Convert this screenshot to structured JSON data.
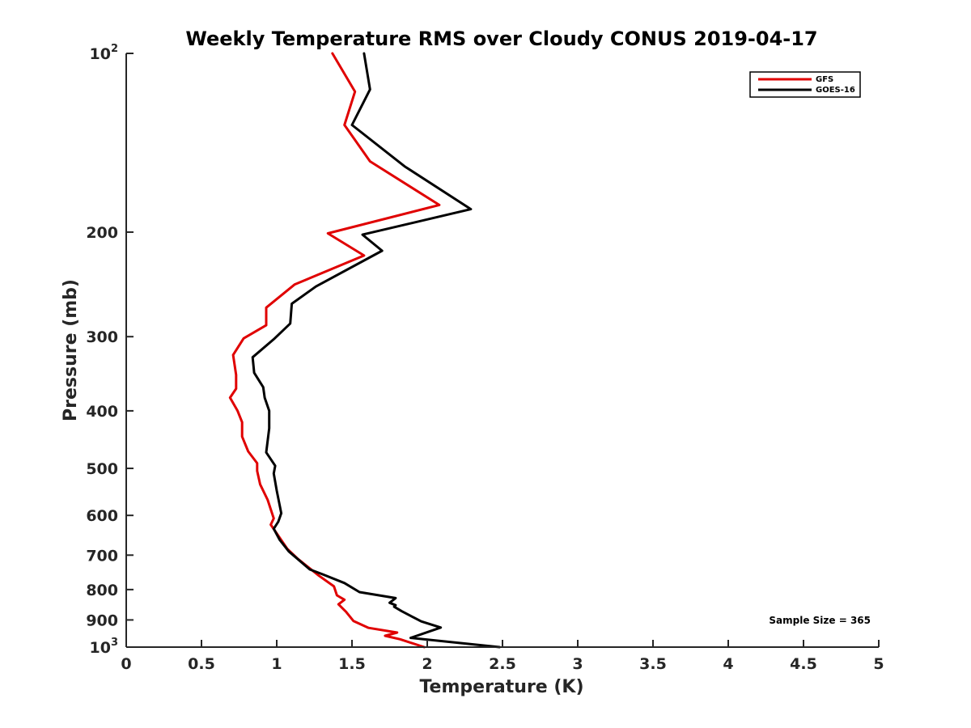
{
  "chart_data": {
    "type": "line",
    "title": "Weekly Temperature RMS over Cloudy CONUS 2019-04-17",
    "xlabel": "Temperature (K)",
    "ylabel": "Pressure (mb)",
    "xlim": [
      0,
      5
    ],
    "ylim": [
      100,
      1000
    ],
    "y_scale": "log",
    "y_reversed": true,
    "x_ticks": [
      "0",
      "0.5",
      "1",
      "1.5",
      "2",
      "2.5",
      "3",
      "3.5",
      "4",
      "4.5",
      "5"
    ],
    "x_tick_values": [
      0,
      0.5,
      1,
      1.5,
      2,
      2.5,
      3,
      3.5,
      4,
      4.5,
      5
    ],
    "y_ticks": [
      {
        "value": 100,
        "label": "10",
        "sup": "2"
      },
      {
        "value": 200,
        "label": "200",
        "sup": ""
      },
      {
        "value": 300,
        "label": "300",
        "sup": ""
      },
      {
        "value": 400,
        "label": "400",
        "sup": ""
      },
      {
        "value": 500,
        "label": "500",
        "sup": ""
      },
      {
        "value": 600,
        "label": "600",
        "sup": ""
      },
      {
        "value": 700,
        "label": "700",
        "sup": ""
      },
      {
        "value": 800,
        "label": "800",
        "sup": ""
      },
      {
        "value": 900,
        "label": "900",
        "sup": ""
      },
      {
        "value": 1000,
        "label": "10",
        "sup": "3"
      }
    ],
    "grid": false,
    "legend_position": "top-right",
    "annotation": "Sample Size = 365",
    "series": [
      {
        "name": "GFS",
        "color": "#e00000",
        "points": [
          [
            1.37,
            100
          ],
          [
            1.52,
            116
          ],
          [
            1.45,
            132
          ],
          [
            1.62,
            152
          ],
          [
            2.08,
            180
          ],
          [
            1.34,
            201
          ],
          [
            1.58,
            219
          ],
          [
            1.12,
            245
          ],
          [
            0.93,
            268
          ],
          [
            0.93,
            287
          ],
          [
            0.78,
            302
          ],
          [
            0.71,
            322
          ],
          [
            0.73,
            348
          ],
          [
            0.73,
            367
          ],
          [
            0.69,
            380
          ],
          [
            0.74,
            400
          ],
          [
            0.77,
            418
          ],
          [
            0.77,
            442
          ],
          [
            0.81,
            468
          ],
          [
            0.87,
            490
          ],
          [
            0.87,
            505
          ],
          [
            0.89,
            532
          ],
          [
            0.94,
            565
          ],
          [
            0.98,
            607
          ],
          [
            0.96,
            622
          ],
          [
            1.01,
            649
          ],
          [
            1.07,
            683
          ],
          [
            1.14,
            710
          ],
          [
            1.28,
            758
          ],
          [
            1.38,
            790
          ],
          [
            1.4,
            818
          ],
          [
            1.45,
            832
          ],
          [
            1.41,
            847
          ],
          [
            1.46,
            872
          ],
          [
            1.51,
            904
          ],
          [
            1.61,
            928
          ],
          [
            1.8,
            945
          ],
          [
            1.72,
            957
          ],
          [
            1.82,
            970
          ],
          [
            1.98,
            1000
          ]
        ]
      },
      {
        "name": "GOES-16",
        "color": "#000000",
        "points": [
          [
            1.58,
            100
          ],
          [
            1.62,
            115
          ],
          [
            1.5,
            132
          ],
          [
            1.85,
            155
          ],
          [
            2.29,
            183
          ],
          [
            1.57,
            202
          ],
          [
            1.7,
            215
          ],
          [
            1.26,
            247
          ],
          [
            1.1,
            264
          ],
          [
            1.09,
            285
          ],
          [
            0.98,
            303
          ],
          [
            0.84,
            325
          ],
          [
            0.85,
            345
          ],
          [
            0.91,
            365
          ],
          [
            0.92,
            380
          ],
          [
            0.95,
            400
          ],
          [
            0.95,
            428
          ],
          [
            0.93,
            470
          ],
          [
            0.99,
            495
          ],
          [
            0.98,
            510
          ],
          [
            1.0,
            545
          ],
          [
            1.03,
            595
          ],
          [
            1.01,
            615
          ],
          [
            0.98,
            632
          ],
          [
            1.02,
            660
          ],
          [
            1.08,
            690
          ],
          [
            1.22,
            740
          ],
          [
            1.3,
            753
          ],
          [
            1.45,
            780
          ],
          [
            1.55,
            808
          ],
          [
            1.79,
            827
          ],
          [
            1.75,
            842
          ],
          [
            1.79,
            850
          ],
          [
            1.78,
            855
          ],
          [
            1.83,
            870
          ],
          [
            1.96,
            905
          ],
          [
            2.09,
            927
          ],
          [
            1.89,
            965
          ],
          [
            2.48,
            1000
          ]
        ]
      }
    ]
  }
}
